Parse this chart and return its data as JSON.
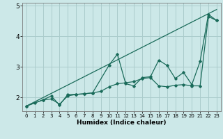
{
  "xlabel": "Humidex (Indice chaleur)",
  "bg_color": "#cce8e8",
  "grid_color": "#aacccc",
  "line_color": "#1a6b5a",
  "xlim": [
    -0.5,
    23.5
  ],
  "ylim": [
    1.55,
    5.1
  ],
  "yticks": [
    2,
    3,
    4,
    5
  ],
  "xticks": [
    0,
    1,
    2,
    3,
    4,
    5,
    6,
    7,
    8,
    9,
    10,
    11,
    12,
    13,
    14,
    15,
    16,
    17,
    18,
    19,
    20,
    21,
    22,
    23
  ],
  "line_straight": [
    [
      0,
      1.72
    ],
    [
      23,
      4.88
    ]
  ],
  "line_smooth": [
    [
      0,
      1.72
    ],
    [
      1,
      1.82
    ],
    [
      2,
      1.92
    ],
    [
      3,
      1.95
    ],
    [
      4,
      1.78
    ],
    [
      5,
      2.05
    ],
    [
      6,
      2.1
    ],
    [
      7,
      2.12
    ],
    [
      8,
      2.15
    ],
    [
      9,
      2.2
    ],
    [
      10,
      2.35
    ],
    [
      11,
      2.45
    ],
    [
      12,
      2.48
    ],
    [
      13,
      2.52
    ],
    [
      14,
      2.62
    ],
    [
      15,
      2.65
    ],
    [
      16,
      2.38
    ],
    [
      17,
      2.35
    ],
    [
      18,
      2.4
    ],
    [
      19,
      2.42
    ],
    [
      20,
      2.38
    ],
    [
      21,
      2.38
    ],
    [
      22,
      4.65
    ],
    [
      23,
      4.52
    ]
  ],
  "line_jagged": [
    [
      0,
      1.72
    ],
    [
      2,
      1.92
    ],
    [
      3,
      2.05
    ],
    [
      4,
      1.75
    ],
    [
      5,
      2.1
    ],
    [
      6,
      2.1
    ],
    [
      7,
      2.12
    ],
    [
      8,
      2.15
    ],
    [
      10,
      3.06
    ],
    [
      11,
      3.42
    ],
    [
      12,
      2.45
    ],
    [
      13,
      2.38
    ],
    [
      14,
      2.65
    ],
    [
      15,
      2.68
    ],
    [
      16,
      3.22
    ],
    [
      17,
      3.05
    ],
    [
      18,
      2.62
    ],
    [
      19,
      2.82
    ],
    [
      20,
      2.42
    ],
    [
      21,
      3.18
    ],
    [
      22,
      4.72
    ],
    [
      23,
      4.52
    ]
  ]
}
